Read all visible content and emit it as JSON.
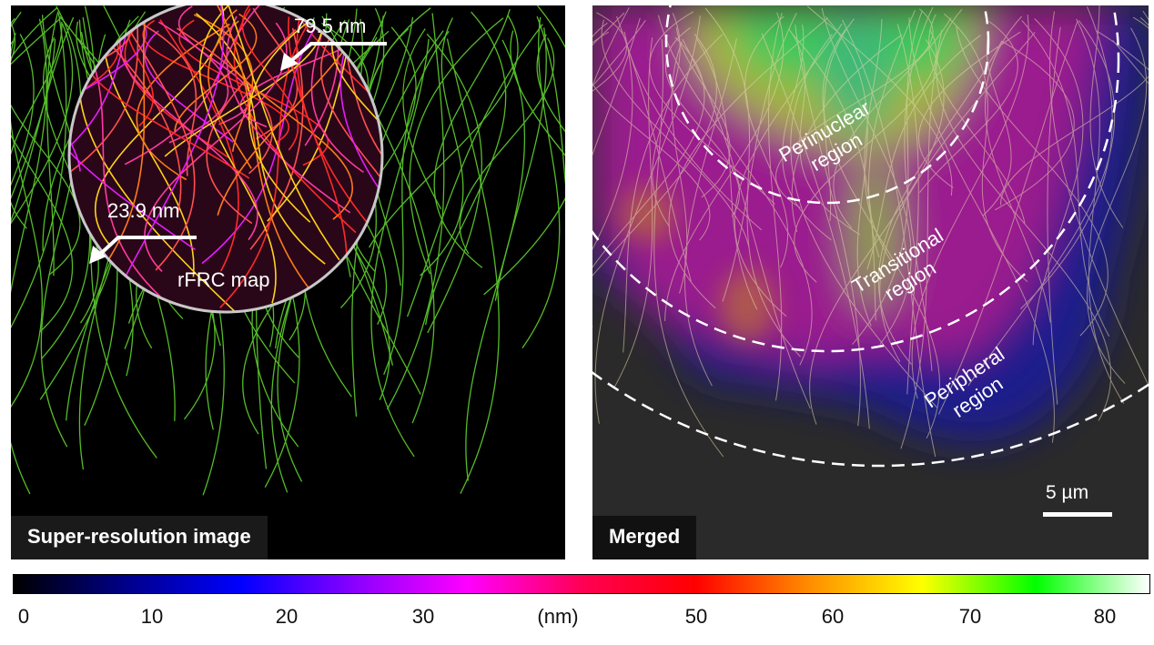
{
  "left_panel": {
    "label": "Super-resolution image",
    "annotation_top": "79.5 nm",
    "annotation_left": "23.9 nm",
    "inset_label": "rFRC map"
  },
  "right_panel": {
    "label": "Merged",
    "regions": {
      "perinuclear": [
        "Perinuclear",
        "region"
      ],
      "transitional": [
        "Transitional",
        "region"
      ],
      "peripheral": [
        "Peripheral",
        "region"
      ]
    },
    "scale_bar": "5 µm"
  },
  "colorbar": {
    "unit": "(nm)",
    "ticks": [
      "0",
      "10",
      "20",
      "30",
      "50",
      "60",
      "70",
      "80"
    ],
    "colors": [
      "#000000",
      "#00008b",
      "#0000ff",
      "#8a00ff",
      "#ff00ff",
      "#ff0055",
      "#ff0000",
      "#ff8c00",
      "#ffff00",
      "#00ff00",
      "#ffffff"
    ]
  }
}
